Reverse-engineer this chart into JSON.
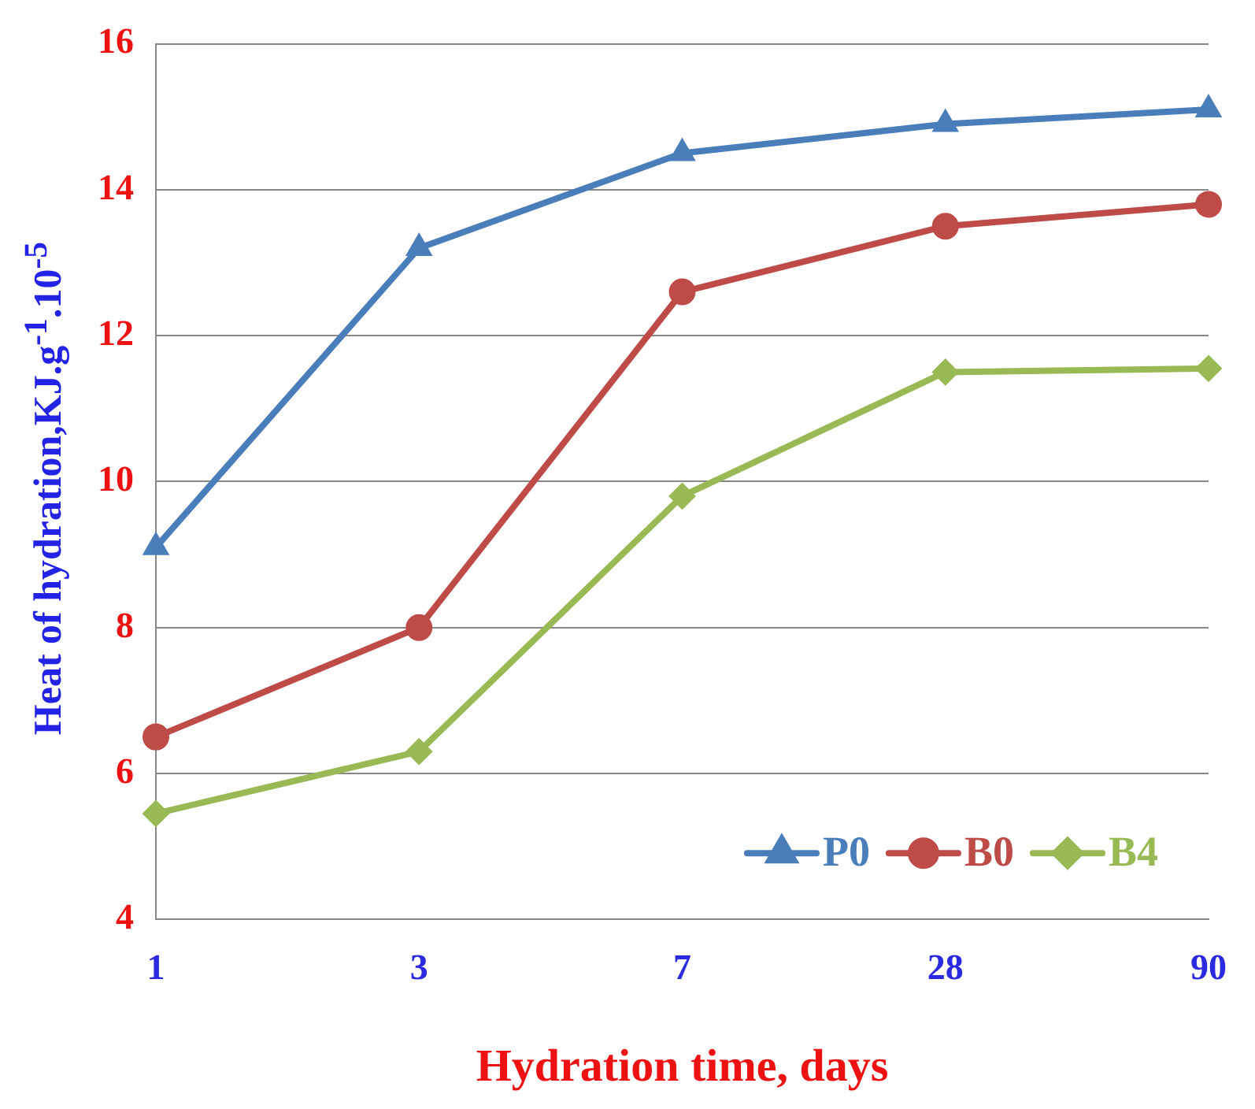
{
  "chart_data": {
    "type": "line",
    "xlabel": "Hydration time, days",
    "ylabel": "Heat of hydration,KJ.g$^{-1}$.10$^{-5}$",
    "categories": [
      "1",
      "3",
      "7",
      "28",
      "90"
    ],
    "series": [
      {
        "name": "P0",
        "color": "#4a7ebb",
        "marker": "triangle",
        "values": [
          9.1,
          13.2,
          14.5,
          14.9,
          15.1
        ]
      },
      {
        "name": "B0",
        "color": "#be4b48",
        "marker": "circle",
        "values": [
          6.5,
          8.0,
          12.6,
          13.5,
          13.8
        ]
      },
      {
        "name": "B4",
        "color": "#98b954",
        "marker": "diamond",
        "values": [
          5.45,
          6.3,
          9.8,
          11.5,
          11.55
        ]
      }
    ],
    "ylim": [
      4,
      16
    ],
    "yticks": [
      4,
      6,
      8,
      10,
      12,
      14,
      16
    ],
    "grid": "y",
    "legend": "bottom right",
    "line_style": "solid"
  }
}
